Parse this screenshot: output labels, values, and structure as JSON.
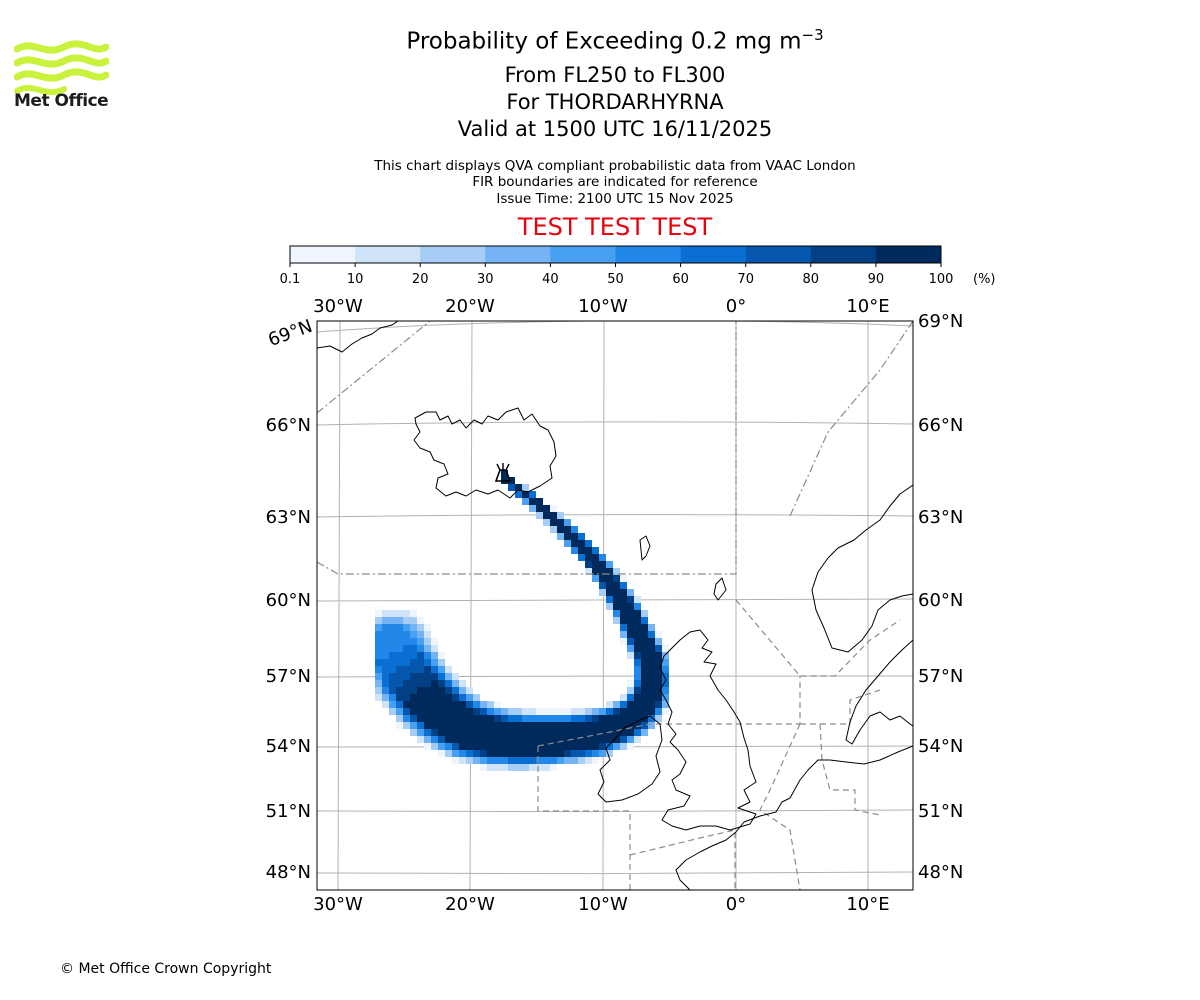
{
  "header": {
    "title_prefix": "Probability of Exceeding 0.2 mg m",
    "title_exponent": "−3",
    "subtitle_levels": "From FL250 to FL300",
    "subtitle_volcano": "For THORDARHYRNA",
    "subtitle_valid": "Valid at 1500 UTC 16/11/2025"
  },
  "notes": [
    "This chart displays QVA compliant probabilistic data from VAAC London",
    "FIR boundaries are indicated for reference",
    "Issue Time: 2100 UTC 15 Nov 2025"
  ],
  "test_banner": "TEST TEST TEST",
  "logo": {
    "text": "Met Office",
    "icon": "met-office-waves-icon",
    "color": "#c8f23c"
  },
  "copyright": "© Met Office Crown Copyright",
  "colorbar": {
    "unit_label": "(%)",
    "ticks": [
      "0.1",
      "10",
      "20",
      "30",
      "40",
      "50",
      "60",
      "70",
      "80",
      "90",
      "100"
    ],
    "colors": [
      "#eef5fd",
      "#cfe3f9",
      "#a6cdf6",
      "#74b4f4",
      "#47a0f1",
      "#2188ea",
      "#0a6fd3",
      "#0457ad",
      "#033f85",
      "#012a5c"
    ]
  },
  "chart_data": {
    "type": "map",
    "projection": "polar stereographic",
    "lon_labels": [
      "30°W",
      "20°W",
      "10°W",
      "0°",
      "10°E"
    ],
    "lat_labels_left": [
      "69°N",
      "66°N",
      "63°N",
      "60°N",
      "57°N",
      "54°N",
      "51°N",
      "48°N"
    ],
    "lat_labels_right": [
      "69°N",
      "66°N",
      "63°N",
      "60°N",
      "57°N",
      "54°N",
      "51°N",
      "48°N"
    ],
    "volcano": {
      "name": "THORDARHYRNA",
      "lat": 64.3,
      "lon": -17.6,
      "icon": "volcano-icon"
    },
    "plume": {
      "description": "ash probability plume from Iceland curving south-east then west over the Atlantic",
      "max_probability_pct": 100
    }
  }
}
